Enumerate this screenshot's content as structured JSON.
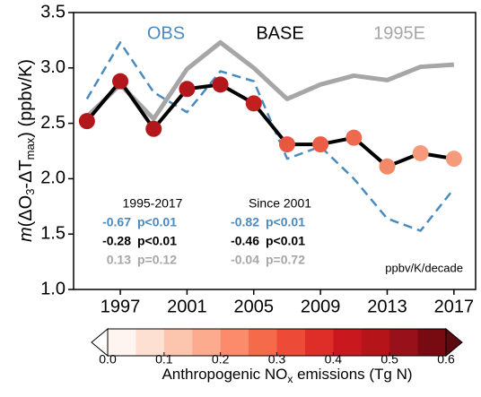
{
  "chart_data": {
    "type": "line",
    "ylabel_parts": [
      "m",
      "(ΔO",
      "3",
      "-ΔT",
      "max",
      ") (ppbv/K)"
    ],
    "x": [
      1995,
      1997,
      1999,
      2001,
      2003,
      2005,
      2007,
      2009,
      2011,
      2013,
      2015,
      2017
    ],
    "xlim": [
      1994.2,
      2018.3
    ],
    "xticks": [
      1997,
      2001,
      2005,
      2009,
      2013,
      2017
    ],
    "ylim": [
      1.0,
      3.5
    ],
    "yticks": [
      {
        "value": 1.0,
        "label": "1.0"
      },
      {
        "value": 1.5,
        "label": "1.5"
      },
      {
        "value": 2.0,
        "label": "2.0"
      },
      {
        "value": 2.5,
        "label": "2.5"
      },
      {
        "value": 3.0,
        "label": "3.0"
      },
      {
        "value": 3.5,
        "label": "3.5"
      }
    ],
    "series": [
      {
        "name": "OBS",
        "color": "#4a8bbf",
        "style": "dashed",
        "values": [
          2.72,
          3.23,
          2.78,
          2.6,
          2.97,
          2.88,
          2.18,
          2.29,
          2.0,
          1.64,
          1.53,
          1.91
        ]
      },
      {
        "name": "1995E",
        "color": "#a6a6a6",
        "style": "thick",
        "values": [
          2.56,
          2.85,
          2.54,
          2.99,
          3.23,
          3.0,
          2.72,
          2.85,
          2.93,
          2.89,
          3.01,
          3.03
        ]
      },
      {
        "name": "BASE",
        "color": "#000000",
        "style": "markers",
        "values": [
          2.52,
          2.88,
          2.45,
          2.81,
          2.85,
          2.68,
          2.31,
          2.31,
          2.37,
          2.11,
          2.23,
          2.18
        ],
        "marker_colors": [
          "#b2181b",
          "#b2181b",
          "#b2181b",
          "#b2181b",
          "#b2181b",
          "#c1201f",
          "#e8573f",
          "#ea5e45",
          "#ee6a4f",
          "#f08a68",
          "#f59a7a",
          "#f59a7a"
        ]
      }
    ],
    "stats": {
      "headers": [
        "1995-2017",
        "Since 2001"
      ],
      "rows": [
        {
          "color": "#4a8bbf",
          "cells": [
            "-0.67",
            "p<0.01",
            "-0.82",
            "p<0.01"
          ]
        },
        {
          "color": "#000000",
          "cells": [
            "-0.28",
            "p<0.01",
            "-0.46",
            "p<0.01"
          ]
        },
        {
          "color": "#a6a6a6",
          "cells": [
            "0.13",
            "p=0.12",
            "-0.04",
            "p=0.72"
          ]
        }
      ],
      "units": "ppbv/K/decade"
    },
    "colorbar": {
      "label_parts": [
        "Anthropogenic NO",
        "x",
        " emissions (Tg N)"
      ],
      "lim": [
        0,
        0.6
      ],
      "ticks": [
        {
          "value": 0,
          "label": "0.0"
        },
        0.1,
        0.2,
        0.3,
        0.4,
        0.5,
        0.6
      ],
      "colors": [
        "#fff5f0",
        "#fee0d2",
        "#fcc5ae",
        "#fcab8f",
        "#fb8b6b",
        "#f66a4c",
        "#ee4a38",
        "#df2e27",
        "#c9191e",
        "#b51419",
        "#98101a",
        "#780a12"
      ],
      "under": "#ffffff",
      "over": "#5c0a10"
    }
  }
}
